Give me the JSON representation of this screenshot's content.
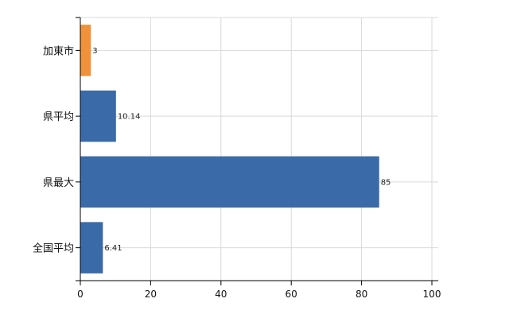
{
  "chart_data": {
    "type": "bar",
    "orientation": "horizontal",
    "categories": [
      "加東市",
      "県平均",
      "県最大",
      "全国平均"
    ],
    "values": [
      3,
      10.14,
      85,
      6.41
    ],
    "value_labels": [
      "3",
      "10.14",
      "85",
      "6.41"
    ],
    "bar_colors": [
      "#f0923c",
      "#3a6aa8",
      "#3a6aa8",
      "#3a6aa8"
    ],
    "title": "",
    "xlabel": "",
    "ylabel": "",
    "xlim": [
      0,
      100
    ],
    "xticks": [
      0,
      20,
      40,
      60,
      80,
      100
    ],
    "xtick_labels": [
      "0",
      "20",
      "40",
      "60",
      "80",
      "100"
    ],
    "grid": true
  }
}
